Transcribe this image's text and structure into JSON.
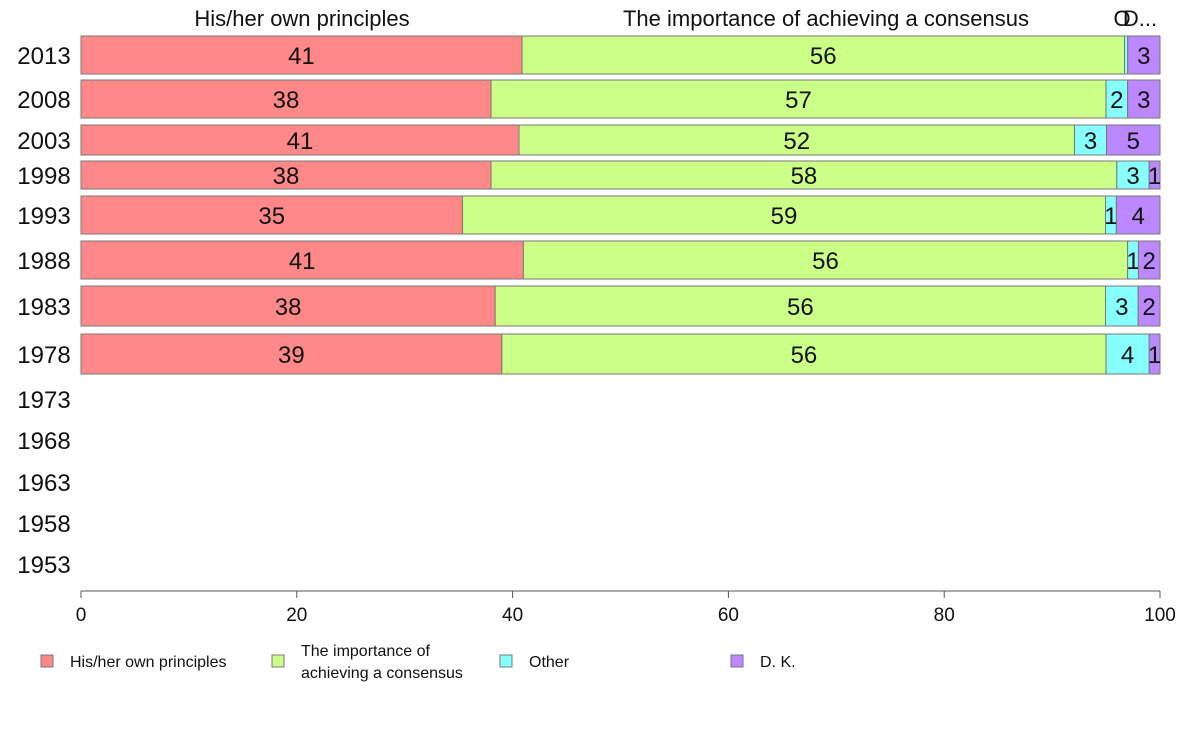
{
  "chart_data": {
    "type": "bar",
    "orientation": "horizontal",
    "stacked": true,
    "categories": [
      "2013",
      "2008",
      "2003",
      "1998",
      "1993",
      "1988",
      "1983",
      "1978",
      "1973",
      "1968",
      "1963",
      "1958",
      "1953"
    ],
    "series": [
      {
        "name": "His/her own principles",
        "color": "#ff8888",
        "values": [
          41,
          38,
          41,
          38,
          35,
          41,
          38,
          39,
          null,
          null,
          null,
          null,
          null
        ]
      },
      {
        "name": "The importance of achieving a consensus",
        "color": "#ccff88",
        "values": [
          56,
          57,
          52,
          58,
          59,
          56,
          56,
          56,
          null,
          null,
          null,
          null,
          null
        ]
      },
      {
        "name": "Other",
        "color": "#88ffff",
        "values": [
          0.3,
          2,
          3,
          3,
          1,
          1,
          3,
          4,
          null,
          null,
          null,
          null,
          null
        ]
      },
      {
        "name": "D. K.",
        "color": "#bb88ff",
        "values": [
          3,
          3,
          5,
          1,
          4,
          2,
          2,
          1,
          null,
          null,
          null,
          null,
          null
        ]
      }
    ],
    "segment_labels": [
      [
        "41",
        "56",
        "",
        "3"
      ],
      [
        "38",
        "57",
        "2",
        "3"
      ],
      [
        "41",
        "52",
        "3",
        "5"
      ],
      [
        "38",
        "58",
        "3",
        "1"
      ],
      [
        "35",
        "59",
        "1",
        "4"
      ],
      [
        "41",
        "56",
        "1",
        "2"
      ],
      [
        "38",
        "56",
        "3",
        "2"
      ],
      [
        "39",
        "56",
        "4",
        "1"
      ]
    ],
    "top_labels": [
      "His/her own principles",
      "The importance of achieving a consensus",
      "O",
      "D..."
    ],
    "xlim": [
      0,
      100
    ],
    "xticks": [
      "0",
      "20",
      "40",
      "60",
      "80",
      "100"
    ],
    "legend": {
      "position": "bottom",
      "entries": [
        {
          "lines": [
            "His/her own principles"
          ],
          "color": "#ff8888"
        },
        {
          "lines": [
            "The importance of",
            "achieving a consensus"
          ],
          "color": "#ccff88"
        },
        {
          "lines": [
            "Other"
          ],
          "color": "#88ffff"
        },
        {
          "lines": [
            "D. K."
          ],
          "color": "#bb88ff"
        }
      ]
    }
  }
}
